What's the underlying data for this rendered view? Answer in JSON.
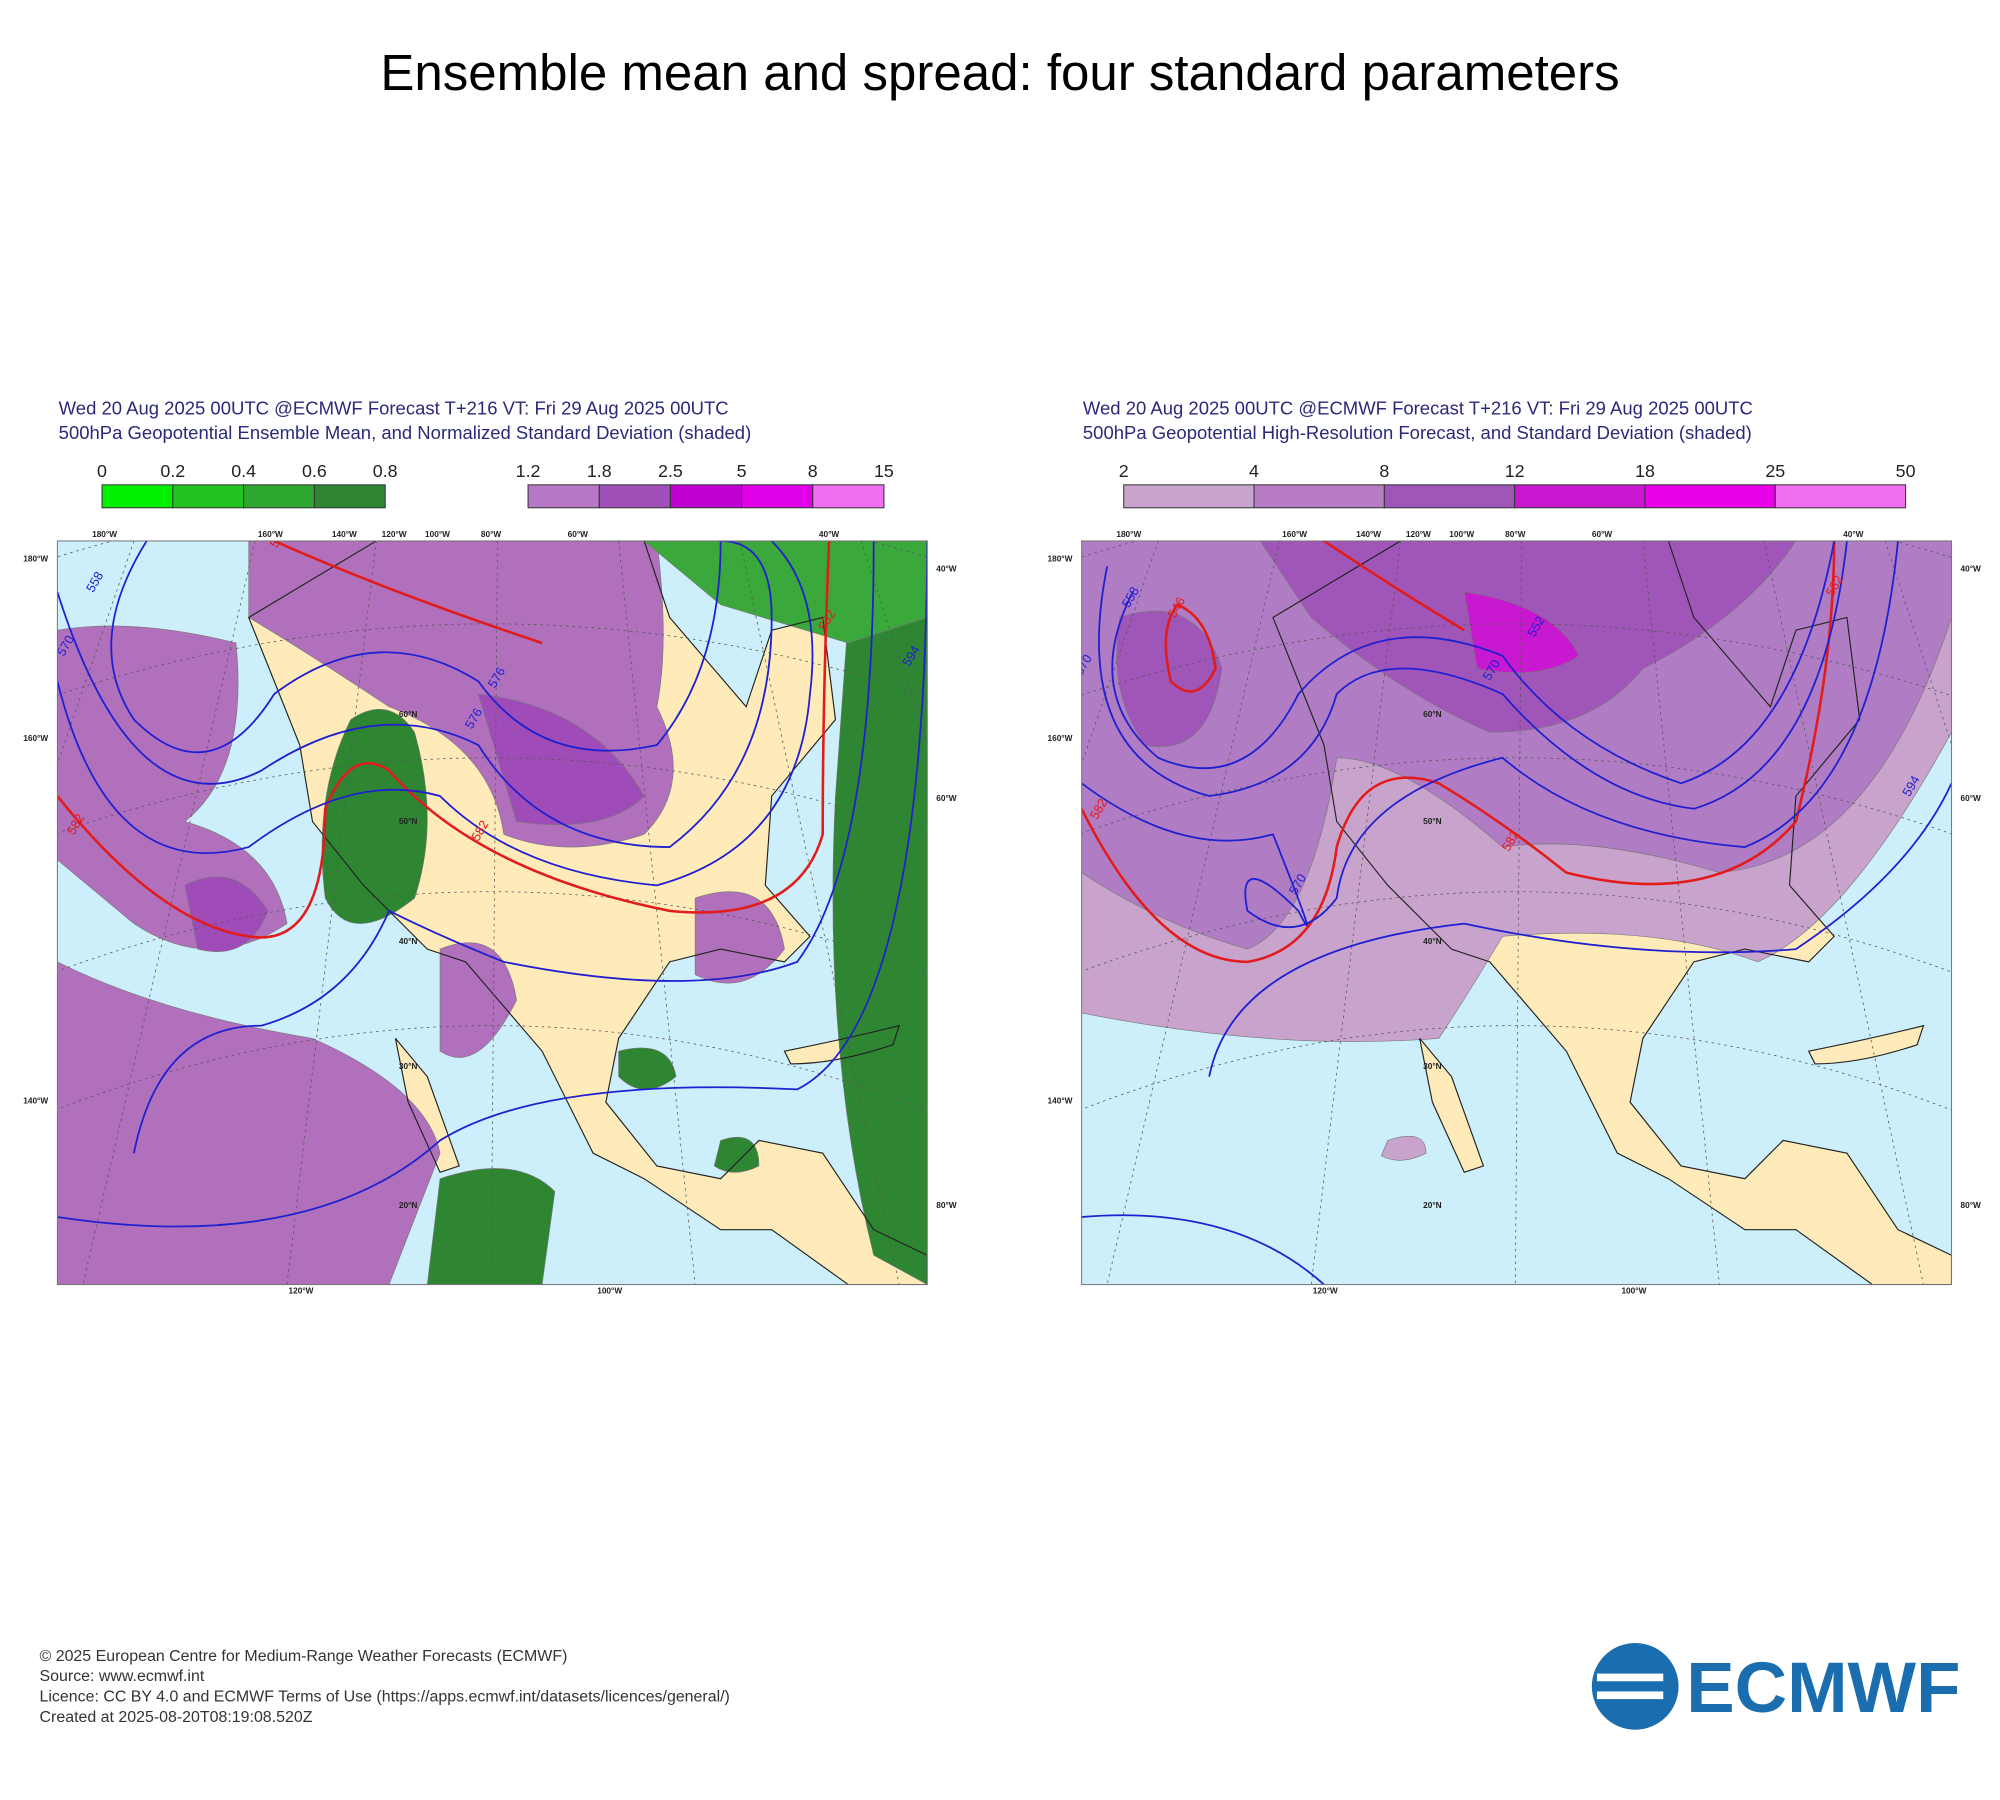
{
  "title": "Ensemble mean and spread: four standard parameters",
  "panels": [
    {
      "header": [
        "Wed 20 Aug 2025 00UTC @ECMWF Forecast T+216 VT: Fri 29 Aug 2025 00UTC",
        "500hPa Geopotential Ensemble Mean, and Normalized Standard Deviation (shaded)"
      ],
      "colorbars": [
        [
          "0",
          "0.2",
          "0.4",
          "0.6",
          "0.8"
        ],
        [
          "1.2",
          "1.8",
          "2.5",
          "5",
          "8",
          "15"
        ]
      ],
      "contour_labels": [
        "546",
        "558",
        "570",
        "576",
        "576",
        "582",
        "582",
        "582",
        "594"
      ]
    },
    {
      "header": [
        "Wed 20 Aug 2025 00UTC @ECMWF Forecast T+216 VT: Fri 29 Aug 2025 00UTC",
        "500hPa Geopotential High-Resolution Forecast, and Standard Deviation (shaded)"
      ],
      "colorbars": [
        [
          "2",
          "4",
          "8",
          "12",
          "18",
          "25",
          "50"
        ]
      ],
      "contour_labels": [
        "558",
        "570",
        "546",
        "582",
        "570",
        "552",
        "570",
        "582",
        "582",
        "594"
      ]
    }
  ],
  "map_labels": {
    "lon_top": [
      "180°W",
      "160°W",
      "140°W",
      "120°W",
      "100°W",
      "80°W",
      "60°W",
      "40°W"
    ],
    "lon_left": [
      "180°W",
      "160°W",
      "140°W"
    ],
    "lon_right": [
      "40°W",
      "60°W",
      "80°W"
    ],
    "lon_bottom": [
      "120°W",
      "100°W"
    ],
    "lat": [
      "60°N",
      "50°N",
      "40°N",
      "30°N",
      "20°N"
    ]
  },
  "footer": [
    "© 2025 European Centre for Medium-Range Weather Forecasts (ECMWF)",
    "Source: www.ecmwf.int",
    "Licence: CC BY 4.0 and ECMWF Terms of Use (https://apps.ecmwf.int/datasets/licences/general/)",
    "Created at 2025-08-20T08:19:08.520Z"
  ],
  "logo": "ECMWF"
}
